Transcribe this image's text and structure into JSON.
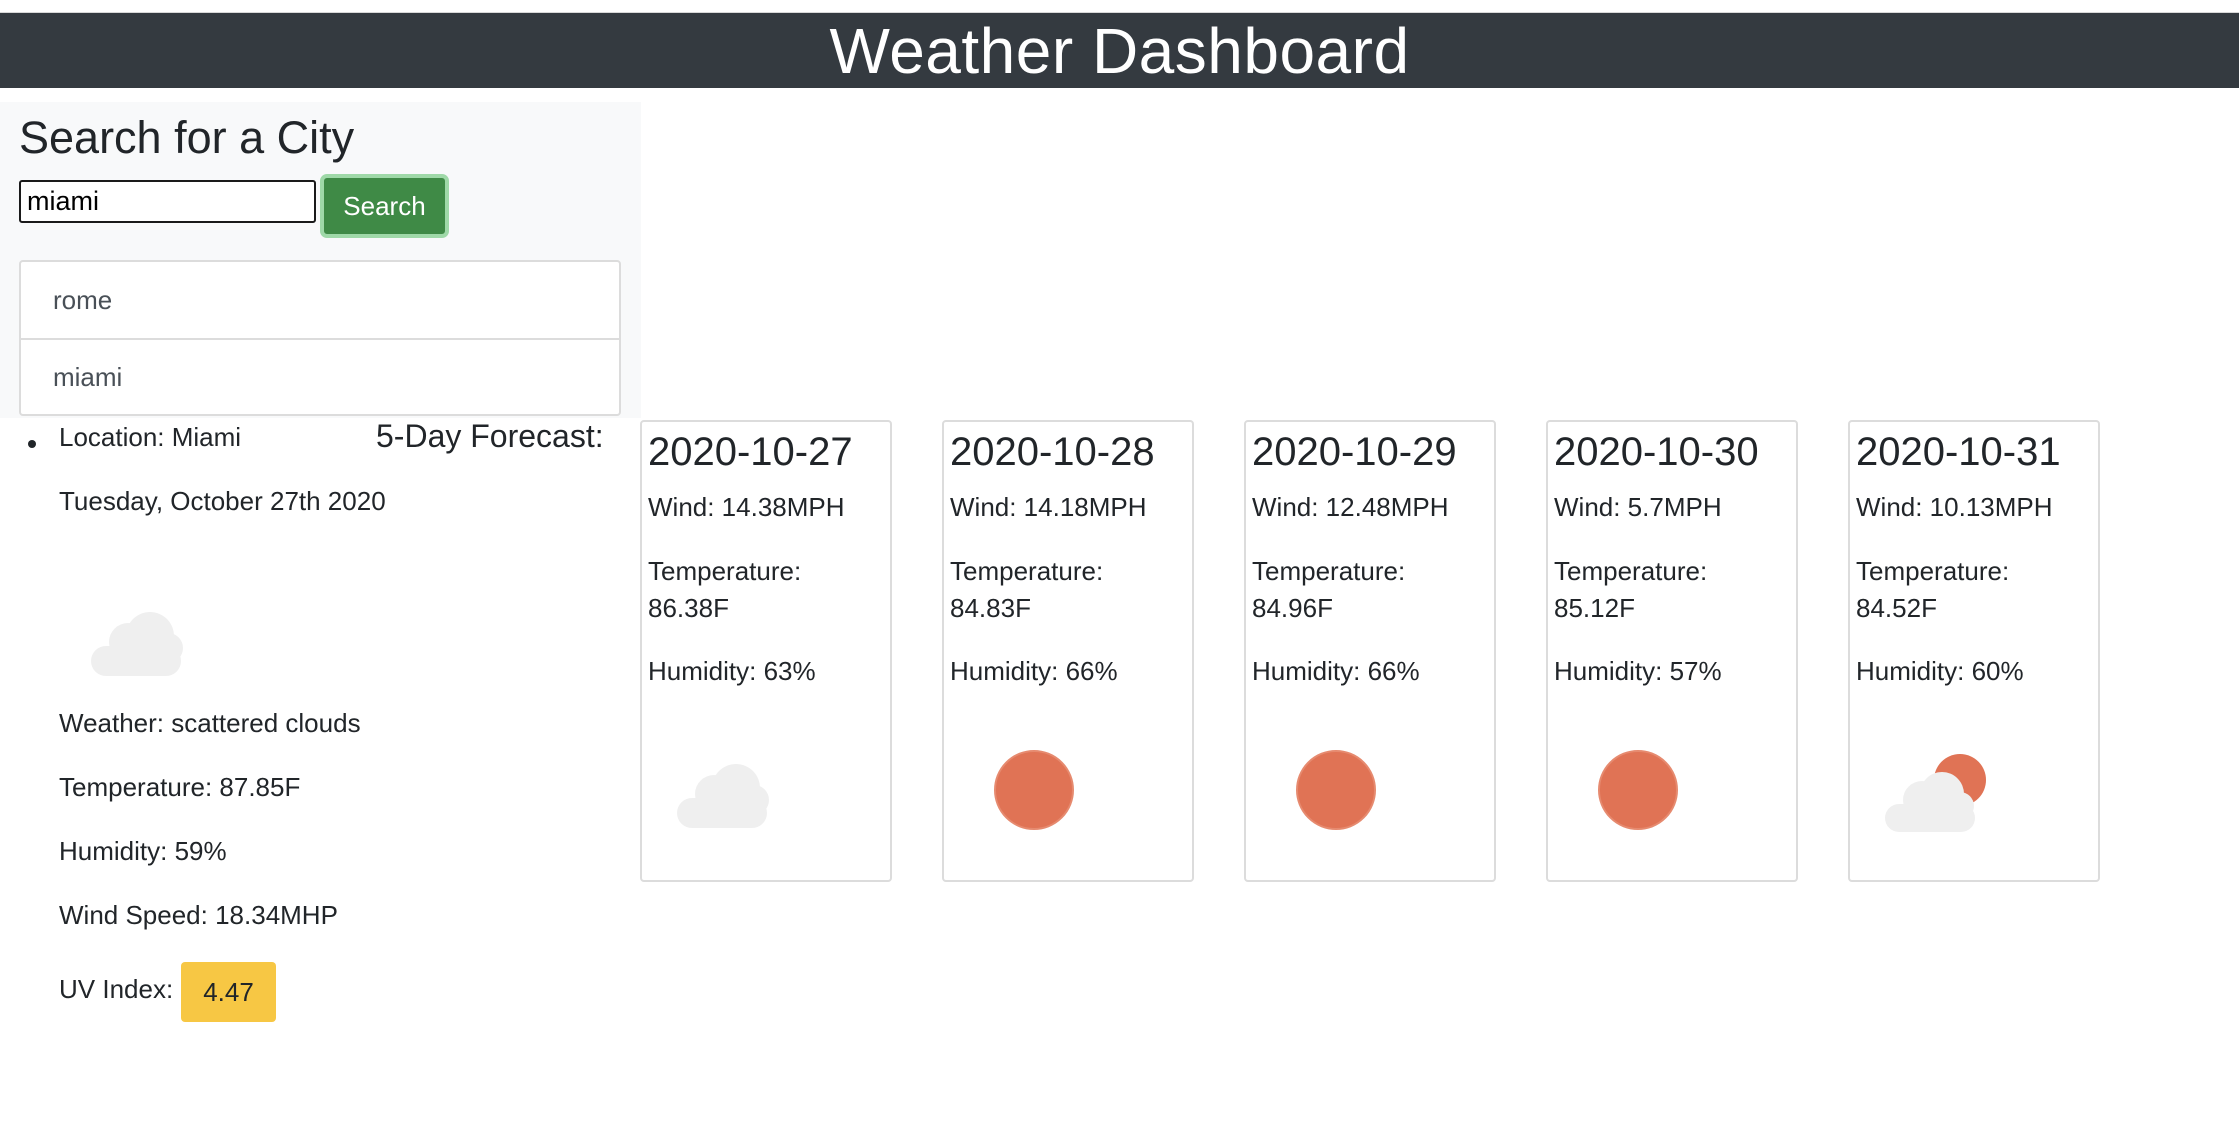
{
  "header": {
    "title": "Weather Dashboard"
  },
  "search": {
    "title": "Search for a City",
    "value": "miami",
    "button_label": "Search",
    "history": [
      "rome",
      "miami"
    ]
  },
  "current": {
    "location": "Location: Miami",
    "date": "Tuesday, October 27th 2020",
    "icon": "cloud-icon",
    "weather": "Weather: scattered clouds",
    "temperature": "Temperature: 87.85F",
    "humidity": "Humidity: 59%",
    "wind": "Wind Speed: 18.34MHP",
    "uv_label": "UV Index:",
    "uv_value": "4.47",
    "uv_color": "#f7c744"
  },
  "forecast": {
    "title": "5-Day Forecast:",
    "days": [
      {
        "date": "2020-10-27",
        "wind": "Wind: 14.38MPH",
        "temp_label": "Temperature:",
        "temp": "86.38F",
        "humidity": "Humidity: 63%",
        "icon": "cloud-icon"
      },
      {
        "date": "2020-10-28",
        "wind": "Wind: 14.18MPH",
        "temp_label": "Temperature:",
        "temp": "84.83F",
        "humidity": "Humidity: 66%",
        "icon": "sun-icon"
      },
      {
        "date": "2020-10-29",
        "wind": "Wind: 12.48MPH",
        "temp_label": "Temperature:",
        "temp": "84.96F",
        "humidity": "Humidity: 66%",
        "icon": "sun-icon"
      },
      {
        "date": "2020-10-30",
        "wind": "Wind: 5.7MPH",
        "temp_label": "Temperature:",
        "temp": "85.12F",
        "humidity": "Humidity: 57%",
        "icon": "sun-icon"
      },
      {
        "date": "2020-10-31",
        "wind": "Wind: 10.13MPH",
        "temp_label": "Temperature:",
        "temp": "84.52F",
        "humidity": "Humidity: 60%",
        "icon": "partly-cloudy-icon"
      }
    ]
  },
  "colors": {
    "header_bg": "#343a40",
    "button_bg": "#3f8a46",
    "sun": "#e07355",
    "cloud": "#efefef"
  }
}
